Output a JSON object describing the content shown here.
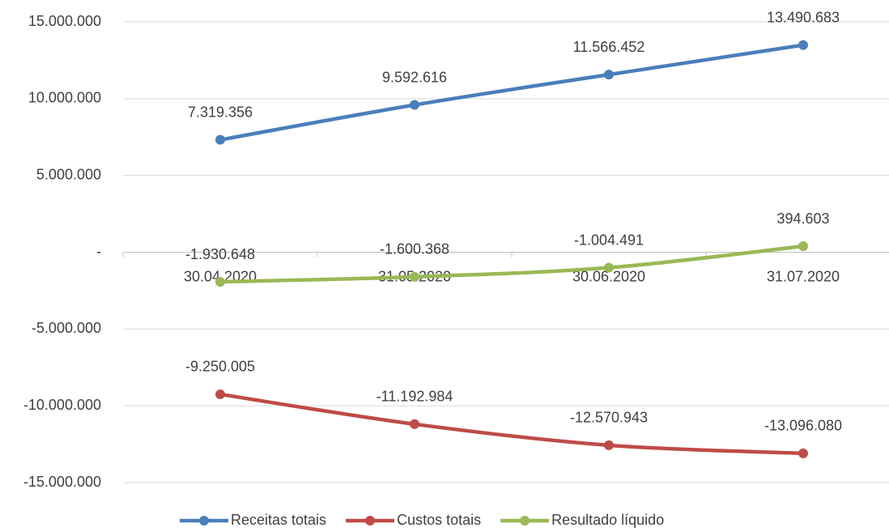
{
  "chart_data": {
    "type": "line",
    "categories": [
      "30.04.2020",
      "31.05.2020",
      "30.06.2020",
      "31.07.2020"
    ],
    "series": [
      {
        "name": "Receitas totais",
        "color": "#4a7ebb",
        "values": [
          7319356,
          9592616,
          11566452,
          13490683
        ],
        "value_labels": [
          "7.319.356",
          "9.592.616",
          "11.566.452",
          "13.490.683"
        ]
      },
      {
        "name": "Custos totais",
        "color": "#be4b48",
        "values": [
          -9250005,
          -11192984,
          -12570943,
          -13096080
        ],
        "value_labels": [
          "-9.250.005",
          "-11.192.984",
          "-12.570.943",
          "-13.096.080"
        ]
      },
      {
        "name": "Resultado líquido",
        "color": "#98b954",
        "values": [
          -1930648,
          -1600368,
          -1004491,
          394603
        ],
        "value_labels": [
          "-1.930.648",
          "-1.600.368",
          "-1.004.491",
          "394.603"
        ]
      }
    ],
    "ylim": [
      -15000000,
      15000000
    ],
    "yticks": [
      {
        "value": -15000000,
        "label": "-15.000.000"
      },
      {
        "value": -10000000,
        "label": "-10.000.000"
      },
      {
        "value": -5000000,
        "label": "-5.000.000"
      },
      {
        "value": 0,
        "label": "-"
      },
      {
        "value": 5000000,
        "label": "5.000.000"
      },
      {
        "value": 10000000,
        "label": "10.000.000"
      },
      {
        "value": 15000000,
        "label": "15.000.000"
      }
    ],
    "grid": true,
    "legend": "bottom",
    "smooth": true
  }
}
